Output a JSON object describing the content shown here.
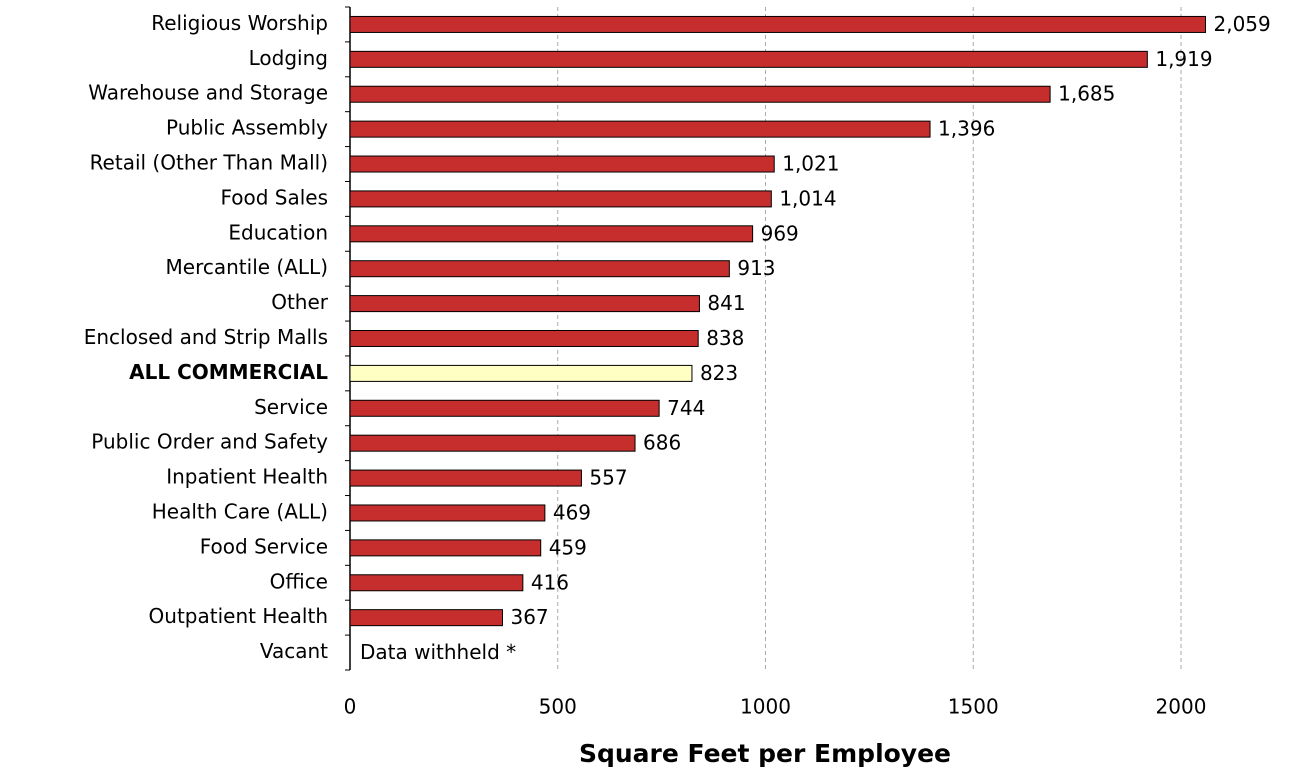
{
  "chart_data": {
    "type": "bar",
    "orientation": "horizontal",
    "x_label": "Square Feet per Employee",
    "categories": [
      "Religious Worship",
      "Lodging",
      "Warehouse and Storage",
      "Public Assembly",
      "Retail (Other Than Mall)",
      "Food Sales",
      "Education",
      "Mercantile (ALL)",
      "Other",
      "Enclosed and Strip Malls",
      "ALL COMMERCIAL",
      "Service",
      "Public Order and Safety",
      "Inpatient Health",
      "Health Care (ALL)",
      "Food Service",
      "Office",
      "Outpatient Health",
      "Vacant"
    ],
    "values": [
      2059,
      1919,
      1685,
      1396,
      1021,
      1014,
      969,
      913,
      841,
      838,
      823,
      744,
      686,
      557,
      469,
      459,
      416,
      367,
      null
    ],
    "value_labels": [
      "2,059",
      "1,919",
      "1,685",
      "1,396",
      "1,021",
      "1,014",
      "969",
      "913",
      "841",
      "838",
      "823",
      "744",
      "686",
      "557",
      "469",
      "459",
      "416",
      "367",
      null
    ],
    "annotation": "Data withheld *",
    "color": "#c62e2e",
    "highlight_index": 10,
    "highlight_color": "#ffffc4",
    "xlim": [
      0,
      2000
    ],
    "xticks": [
      0,
      500,
      1000,
      1500,
      2000
    ],
    "grid": true
  }
}
